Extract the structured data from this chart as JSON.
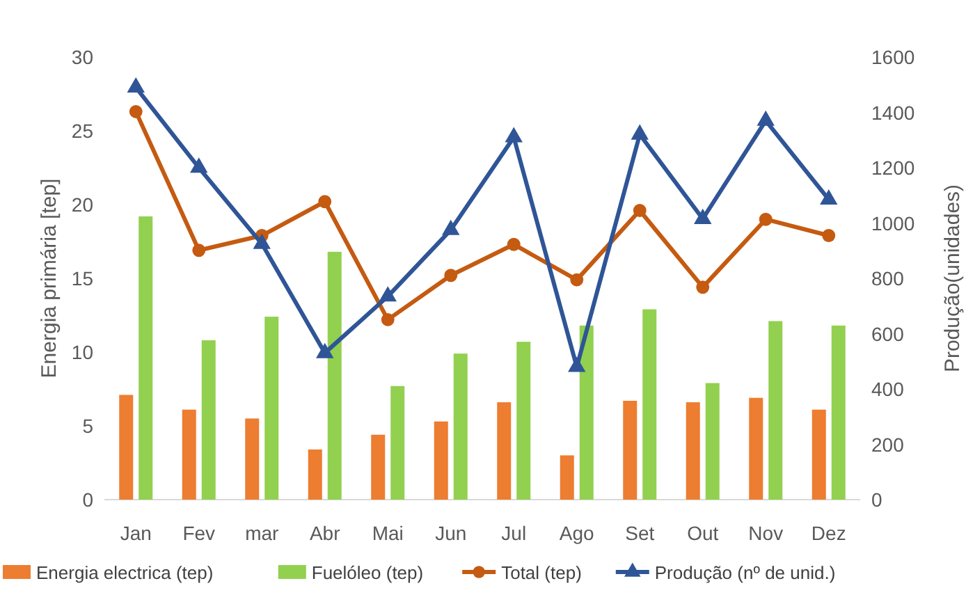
{
  "chart_data": {
    "type": "bar",
    "categories": [
      "Jan",
      "Fev",
      "mar",
      "Abr",
      "Mai",
      "Jun",
      "Jul",
      "Ago",
      "Set",
      "Out",
      "Nov",
      "Dez"
    ],
    "ylabel": "Energia primária [tep]",
    "y2label": "Produção(unidades)",
    "ylim": [
      0,
      30
    ],
    "yticks": [
      0,
      5,
      10,
      15,
      20,
      25,
      30
    ],
    "y2lim": [
      0,
      1600
    ],
    "y2ticks": [
      0,
      200,
      400,
      600,
      800,
      1000,
      1200,
      1400,
      1600
    ],
    "legend": "bottom",
    "grid": false,
    "series": [
      {
        "name": "Energia electrica (tep)",
        "color": "#ed7d31",
        "values": [
          7.1,
          6.1,
          5.5,
          3.4,
          4.4,
          5.3,
          6.6,
          3.0,
          6.7,
          6.6,
          6.9,
          6.1
        ]
      },
      {
        "name": "Fuelóleo (tep)",
        "color": "#92d050",
        "values": [
          19.2,
          10.8,
          12.4,
          16.8,
          7.7,
          9.9,
          10.7,
          11.8,
          12.9,
          7.9,
          12.1,
          11.8
        ]
      },
      {
        "name": "Total (tep)",
        "type": "line",
        "color": "#c55a11",
        "marker": "circle",
        "values": [
          26.3,
          16.9,
          17.9,
          20.2,
          12.2,
          15.2,
          17.3,
          14.9,
          19.6,
          14.4,
          19.0,
          17.9
        ]
      },
      {
        "name": "Produção (nº de unid.)",
        "type": "line",
        "color": "#2f5597",
        "marker": "triangle",
        "axis": "y2",
        "values": [
          1490,
          1200,
          925,
          530,
          735,
          975,
          1310,
          480,
          1320,
          1015,
          1370,
          1085
        ]
      }
    ]
  }
}
